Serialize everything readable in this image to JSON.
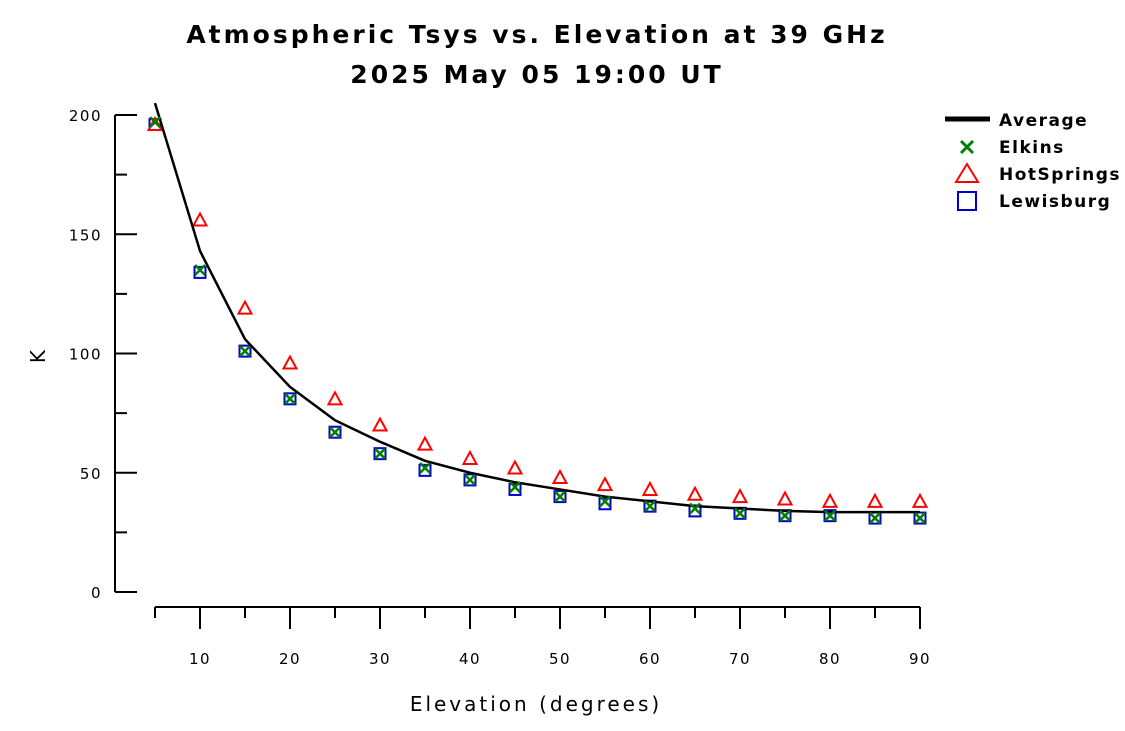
{
  "chart_data": {
    "type": "line",
    "title": "Atmospheric Tsys vs. Elevation at 39 GHz",
    "subtitle": "2025 May 05 19:00 UT",
    "xlabel": "Elevation (degrees)",
    "ylabel": "K",
    "xlim": [
      5,
      90
    ],
    "ylim": [
      0,
      200
    ],
    "x_ticks": [
      10,
      20,
      30,
      40,
      50,
      60,
      70,
      80,
      90
    ],
    "x_tick_labels": [
      "10",
      "20",
      "30",
      "40",
      "50",
      "60",
      "70",
      "80",
      "90"
    ],
    "y_ticks": [
      0,
      50,
      100,
      150,
      200
    ],
    "y_tick_labels": [
      "0",
      "50",
      "100",
      "150",
      "200"
    ],
    "grid": false,
    "legend_position": "top-right",
    "x": [
      5,
      10,
      15,
      20,
      25,
      30,
      35,
      40,
      45,
      50,
      55,
      60,
      65,
      70,
      75,
      80,
      85,
      90
    ],
    "series": [
      {
        "name": "Average",
        "style": "line",
        "color": "#000000",
        "values": [
          205,
          143,
          106,
          86,
          72,
          63,
          55,
          50,
          46,
          43,
          40,
          38,
          36,
          35,
          34,
          33.5,
          33.5,
          33.5
        ]
      },
      {
        "name": "Elkins",
        "style": "x",
        "color": "#008000",
        "values": [
          197,
          135,
          101,
          81,
          67,
          58,
          52,
          47,
          44,
          40,
          38,
          36,
          35,
          33,
          32,
          32,
          31,
          31
        ]
      },
      {
        "name": "HotSprings",
        "style": "triangle",
        "color": "#ff0000",
        "values": [
          196,
          156,
          119,
          96,
          81,
          70,
          62,
          56,
          52,
          48,
          45,
          43,
          41,
          40,
          39,
          38,
          38,
          38
        ]
      },
      {
        "name": "Lewisburg",
        "style": "square",
        "color": "#0000cc",
        "values": [
          196,
          134,
          101,
          81,
          67,
          58,
          51,
          47,
          43,
          40,
          37,
          36,
          34,
          33,
          32,
          32,
          31,
          31
        ]
      }
    ]
  }
}
